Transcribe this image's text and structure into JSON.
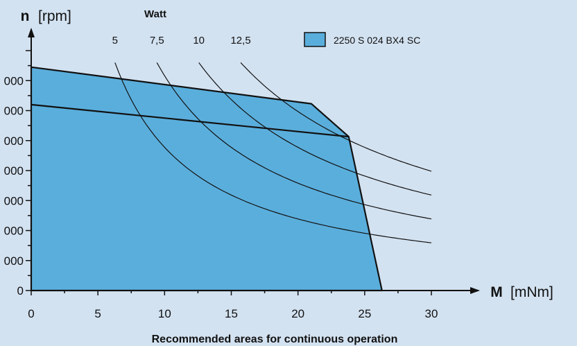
{
  "colors": {
    "background": "#d3e2f1",
    "area_fill": "#5aaedc",
    "line": "#111111"
  },
  "chart_data": {
    "type": "area",
    "title": "Recommended areas for continuous operation",
    "ylabel_bold": "n",
    "ylabel_rest": "[rpm]",
    "xlabel_bold": "M",
    "xlabel_rest": "[mNm]",
    "xlim": [
      0,
      30
    ],
    "ylim": [
      0,
      8000
    ],
    "x_ticks": [
      "0",
      "5",
      "10",
      "15",
      "20",
      "25",
      "30"
    ],
    "y_ticks": [
      {
        "value": 0,
        "label": "0"
      },
      {
        "value": 1000,
        "label": "000"
      },
      {
        "value": 2000,
        "label": "000"
      },
      {
        "value": 3000,
        "label": "000"
      },
      {
        "value": 4000,
        "label": "000"
      },
      {
        "value": 5000,
        "label": "000"
      },
      {
        "value": 6000,
        "label": "000"
      },
      {
        "value": 7000,
        "label": "000"
      }
    ],
    "legend_title": "Watt",
    "legend": {
      "label": "2250 S 024 BX4 SC",
      "placement": "top-right"
    },
    "operating_area": {
      "name": "2250 S 024 BX4 SC",
      "points": [
        [
          0,
          7450
        ],
        [
          21,
          6230
        ],
        [
          23.8,
          5130
        ],
        [
          26.3,
          0
        ],
        [
          0,
          0
        ]
      ]
    },
    "speed_line": {
      "points": [
        [
          0,
          6200
        ],
        [
          23.8,
          5130
        ]
      ]
    },
    "power_curves": [
      {
        "label": "5",
        "watt": 5
      },
      {
        "label": "7,5",
        "watt": 7.5
      },
      {
        "label": "10",
        "watt": 10
      },
      {
        "label": "12,5",
        "watt": 12.5
      }
    ]
  }
}
